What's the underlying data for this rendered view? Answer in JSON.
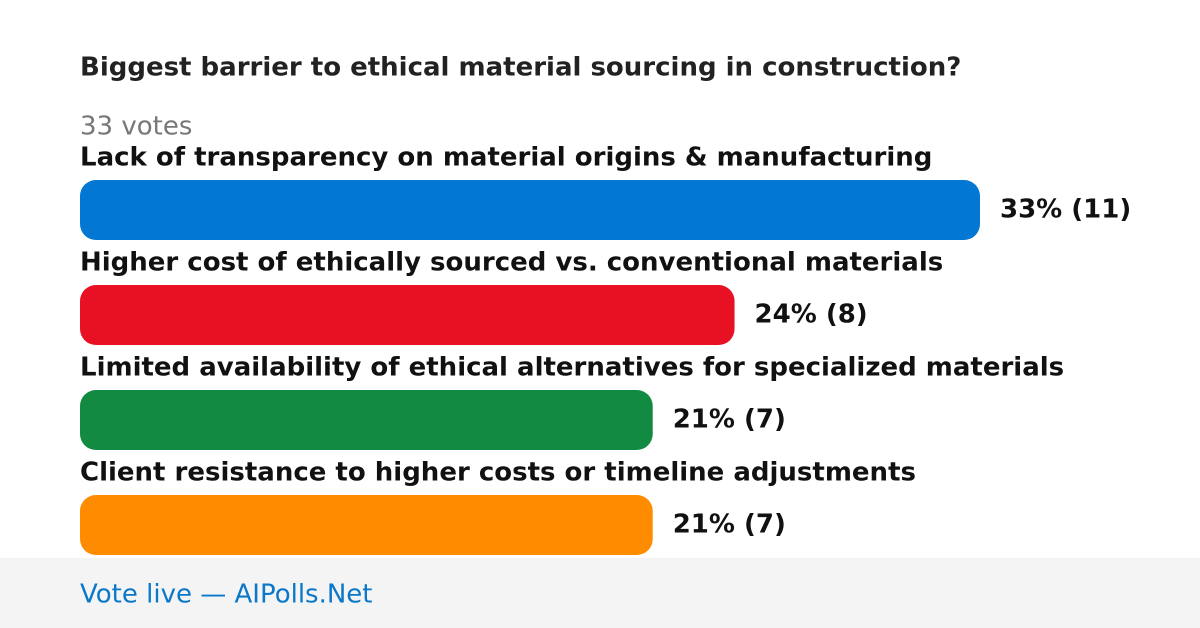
{
  "chart_data": {
    "type": "bar",
    "orientation": "horizontal",
    "title": "Biggest barrier to ethical material sourcing in construction?",
    "subtitle": "33 votes",
    "categories": [
      "Lack of transparency on material origins & manufacturing",
      "Higher cost of ethically sourced vs. conventional materials",
      "Limited availability of ethical alternatives for specialized materials",
      "Client resistance to higher costs or timeline adjustments"
    ],
    "values": [
      33,
      24,
      21,
      21
    ],
    "value_labels": [
      "33% (11)",
      "24% (8)",
      "21% (7)",
      "21% (7)"
    ],
    "colors": [
      "#0277d4",
      "#e81123",
      "#138a41",
      "#ff8c00"
    ],
    "footer": "Vote live — AIPolls.Net"
  }
}
